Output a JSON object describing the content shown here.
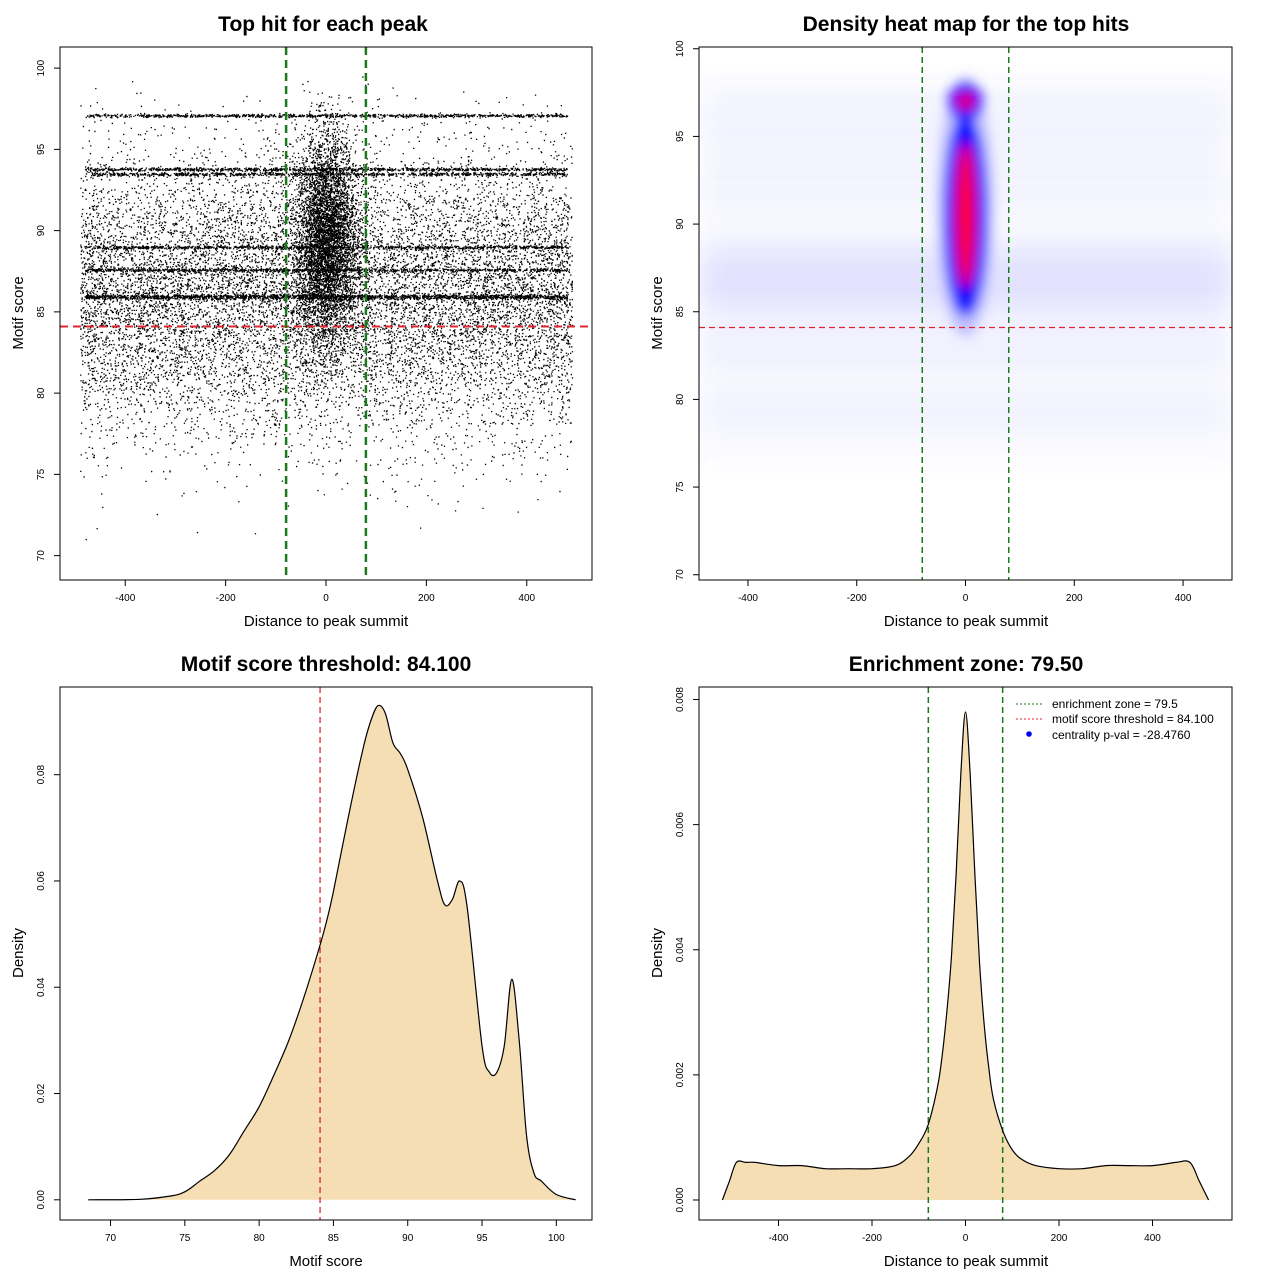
{
  "colors": {
    "threshold": "#e0262b",
    "zone": "#1a7a1a",
    "fill": "#f5deb3",
    "points": "#000000",
    "heat_low": "#0000ff",
    "heat_high": "#ff0000",
    "pval_dot": "#0000ff"
  },
  "chart_data": [
    {
      "id": "scatter",
      "type": "scatter",
      "title": "Top hit for each peak",
      "xlabel": "Distance to peak summit",
      "ylabel": "Motif score",
      "xlim": [
        -530,
        530
      ],
      "ylim": [
        68.5,
        101.3
      ],
      "xticks": [
        -400,
        -200,
        0,
        200,
        400
      ],
      "yticks": [
        70,
        75,
        80,
        85,
        90,
        95,
        100
      ],
      "threshold_y": 84.1,
      "zone_x": [
        -79.5,
        79.5
      ],
      "point_count_estimate": 30000,
      "horizontal_bands": [
        97.1,
        93.8,
        93.5,
        89.0,
        87.6,
        86.0,
        85.9
      ]
    },
    {
      "id": "heatmap",
      "type": "heatmap",
      "title": "Density heat map for the top hits",
      "xlabel": "Distance to peak summit",
      "ylabel": "Motif score",
      "xlim": [
        -490,
        490
      ],
      "ylim": [
        69.7,
        100.1
      ],
      "xticks": [
        -400,
        -200,
        0,
        200,
        400
      ],
      "yticks": [
        70,
        75,
        80,
        85,
        90,
        95,
        100
      ],
      "threshold_y": 84.1,
      "zone_x": [
        -79.5,
        79.5
      ],
      "hotspots": [
        {
          "x": 0,
          "y": 90.5,
          "level": "high"
        },
        {
          "x": 0,
          "y": 97.0,
          "level": "high"
        },
        {
          "x": 0,
          "y": 87.0,
          "level": "medium"
        }
      ]
    },
    {
      "id": "score-density",
      "type": "area",
      "title": "Motif score threshold: 84.100",
      "xlabel": "Motif score",
      "ylabel": "Density",
      "xlim": [
        66.6,
        102.4
      ],
      "ylim": [
        -0.0038,
        0.0965
      ],
      "xticks": [
        70,
        75,
        80,
        85,
        90,
        95,
        100
      ],
      "yticks": [
        0.0,
        0.02,
        0.04,
        0.06,
        0.08
      ],
      "ytick_labels": [
        "0.00",
        "0.02",
        "0.04",
        "0.06",
        "0.08"
      ],
      "threshold_x": 84.1,
      "x": [
        68.5,
        72,
        74,
        75,
        76,
        77,
        78,
        79,
        80,
        81,
        82,
        83,
        84,
        84.5,
        85,
        86,
        87,
        87.5,
        88,
        88.5,
        89,
        89.5,
        90,
        91,
        92,
        92.5,
        93,
        93.5,
        94,
        95,
        95.5,
        96,
        96.5,
        97,
        97.5,
        98,
        98.5,
        99,
        100,
        101.3
      ],
      "y": [
        0.0,
        0.0001,
        0.0007,
        0.0015,
        0.0035,
        0.0055,
        0.0085,
        0.013,
        0.0175,
        0.0235,
        0.03,
        0.038,
        0.047,
        0.052,
        0.058,
        0.072,
        0.085,
        0.09,
        0.093,
        0.0915,
        0.086,
        0.084,
        0.081,
        0.072,
        0.06,
        0.0555,
        0.0565,
        0.06,
        0.055,
        0.029,
        0.024,
        0.024,
        0.029,
        0.0415,
        0.03,
        0.012,
        0.005,
        0.0035,
        0.001,
        0.0
      ]
    },
    {
      "id": "distance-density",
      "type": "area",
      "title": "Enrichment zone: 79.50",
      "xlabel": "Distance to peak summit",
      "ylabel": "Density",
      "xlim": [
        -570,
        570
      ],
      "ylim": [
        -0.00032,
        0.0082
      ],
      "xticks": [
        -400,
        -200,
        0,
        200,
        400
      ],
      "yticks": [
        0.0,
        0.002,
        0.004,
        0.006,
        0.008
      ],
      "ytick_labels": [
        "0.000",
        "0.002",
        "0.004",
        "0.006",
        "0.008"
      ],
      "zone_x": [
        -79.5,
        79.5
      ],
      "x": [
        -520,
        -505,
        -490,
        -470,
        -450,
        -400,
        -350,
        -300,
        -250,
        -200,
        -150,
        -120,
        -100,
        -80,
        -60,
        -50,
        -40,
        -30,
        -20,
        -10,
        0,
        10,
        20,
        30,
        40,
        50,
        60,
        80,
        100,
        120,
        150,
        200,
        250,
        300,
        350,
        400,
        450,
        480,
        500,
        520
      ],
      "y": [
        0.0,
        0.0003,
        0.0006,
        0.0006,
        0.0006,
        0.00055,
        0.00055,
        0.0005,
        0.0005,
        0.0005,
        0.00055,
        0.0007,
        0.0009,
        0.0012,
        0.0018,
        0.0023,
        0.003,
        0.0039,
        0.0052,
        0.0068,
        0.0078,
        0.0068,
        0.0052,
        0.0038,
        0.0028,
        0.0021,
        0.0016,
        0.0011,
        0.0008,
        0.00065,
        0.00055,
        0.0005,
        0.0005,
        0.00055,
        0.00055,
        0.00055,
        0.0006,
        0.0006,
        0.0003,
        0.0
      ],
      "legend": [
        {
          "label": "enrichment zone = 79.5",
          "style": "zone-line"
        },
        {
          "label": "motif score threshold = 84.100",
          "style": "threshold-line"
        },
        {
          "label": "centrality p-val = -28.4760",
          "style": "dot"
        }
      ]
    }
  ]
}
